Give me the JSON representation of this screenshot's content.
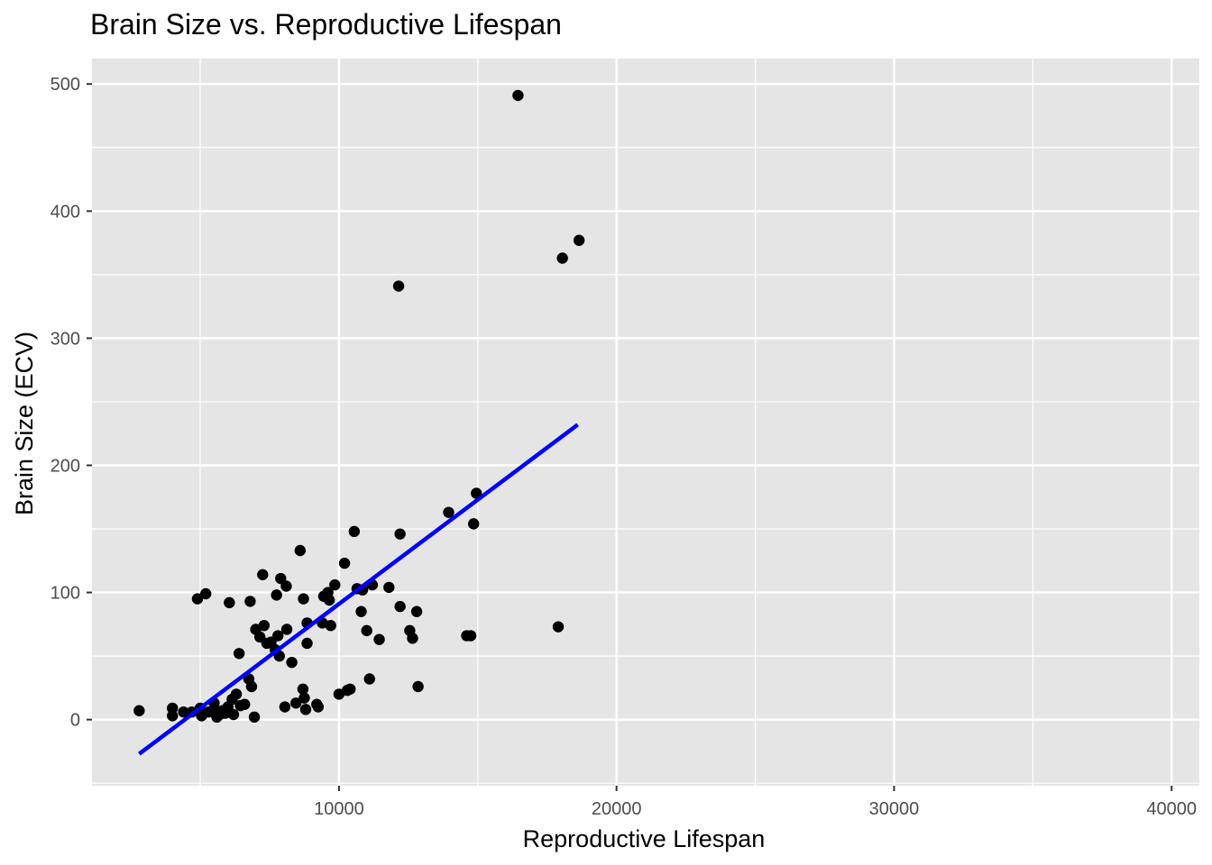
{
  "chart_data": {
    "type": "scatter",
    "title": "Brain Size vs. Reproductive Lifespan",
    "xlabel": "Reproductive Lifespan",
    "ylabel": "Brain Size (ECV)",
    "xlim": [
      1100,
      41000
    ],
    "ylim": [
      -52,
      520
    ],
    "x_ticks": [
      10000,
      20000,
      30000,
      40000
    ],
    "x_tick_labels": [
      "10000",
      "20000",
      "30000",
      "40000"
    ],
    "y_ticks": [
      0,
      100,
      200,
      300,
      400,
      500
    ],
    "y_tick_labels": [
      "0",
      "100",
      "200",
      "300",
      "400",
      "500"
    ],
    "grid": true,
    "background_color": "#e5e5e5",
    "grid_color": "#ffffff",
    "point_color": "#000000",
    "trend_line": {
      "method": "linear fit",
      "color": "#0000ff",
      "x": [
        2800,
        18600
      ],
      "y": [
        -27,
        232
      ]
    },
    "points": [
      {
        "x": 2800,
        "y": 7
      },
      {
        "x": 4000,
        "y": 3
      },
      {
        "x": 4000,
        "y": 9
      },
      {
        "x": 4400,
        "y": 6
      },
      {
        "x": 4700,
        "y": 6
      },
      {
        "x": 4900,
        "y": 95
      },
      {
        "x": 5000,
        "y": 9
      },
      {
        "x": 5050,
        "y": 3
      },
      {
        "x": 5200,
        "y": 99
      },
      {
        "x": 5300,
        "y": 6
      },
      {
        "x": 5500,
        "y": 13
      },
      {
        "x": 5500,
        "y": 8
      },
      {
        "x": 5600,
        "y": 2
      },
      {
        "x": 5700,
        "y": 4
      },
      {
        "x": 5800,
        "y": 7
      },
      {
        "x": 5900,
        "y": 5
      },
      {
        "x": 6000,
        "y": 10
      },
      {
        "x": 6050,
        "y": 92
      },
      {
        "x": 6150,
        "y": 16
      },
      {
        "x": 6200,
        "y": 4
      },
      {
        "x": 6300,
        "y": 20
      },
      {
        "x": 6400,
        "y": 52
      },
      {
        "x": 6450,
        "y": 11
      },
      {
        "x": 6600,
        "y": 12
      },
      {
        "x": 6750,
        "y": 32
      },
      {
        "x": 6800,
        "y": 93
      },
      {
        "x": 6850,
        "y": 26
      },
      {
        "x": 6950,
        "y": 2
      },
      {
        "x": 7000,
        "y": 71
      },
      {
        "x": 7150,
        "y": 65
      },
      {
        "x": 7250,
        "y": 114
      },
      {
        "x": 7300,
        "y": 74
      },
      {
        "x": 7400,
        "y": 60
      },
      {
        "x": 7550,
        "y": 61
      },
      {
        "x": 7700,
        "y": 55
      },
      {
        "x": 7750,
        "y": 98
      },
      {
        "x": 7800,
        "y": 66
      },
      {
        "x": 7850,
        "y": 50
      },
      {
        "x": 7900,
        "y": 111
      },
      {
        "x": 8050,
        "y": 10
      },
      {
        "x": 8100,
        "y": 105
      },
      {
        "x": 8120,
        "y": 71
      },
      {
        "x": 8300,
        "y": 45
      },
      {
        "x": 8450,
        "y": 13
      },
      {
        "x": 8600,
        "y": 133
      },
      {
        "x": 8700,
        "y": 24
      },
      {
        "x": 8720,
        "y": 95
      },
      {
        "x": 8750,
        "y": 17
      },
      {
        "x": 8800,
        "y": 8
      },
      {
        "x": 8850,
        "y": 76
      },
      {
        "x": 8850,
        "y": 60
      },
      {
        "x": 9200,
        "y": 12
      },
      {
        "x": 9250,
        "y": 10
      },
      {
        "x": 9400,
        "y": 76
      },
      {
        "x": 9450,
        "y": 97
      },
      {
        "x": 9600,
        "y": 100
      },
      {
        "x": 9650,
        "y": 94
      },
      {
        "x": 9700,
        "y": 74
      },
      {
        "x": 9850,
        "y": 106
      },
      {
        "x": 10000,
        "y": 20
      },
      {
        "x": 10200,
        "y": 123
      },
      {
        "x": 10300,
        "y": 23
      },
      {
        "x": 10400,
        "y": 24
      },
      {
        "x": 10550,
        "y": 148
      },
      {
        "x": 10650,
        "y": 103
      },
      {
        "x": 10800,
        "y": 85
      },
      {
        "x": 10850,
        "y": 102
      },
      {
        "x": 11000,
        "y": 70
      },
      {
        "x": 11100,
        "y": 32
      },
      {
        "x": 11200,
        "y": 106
      },
      {
        "x": 11450,
        "y": 63
      },
      {
        "x": 11800,
        "y": 104
      },
      {
        "x": 12150,
        "y": 341
      },
      {
        "x": 12200,
        "y": 146
      },
      {
        "x": 12200,
        "y": 89
      },
      {
        "x": 12550,
        "y": 70
      },
      {
        "x": 12650,
        "y": 64
      },
      {
        "x": 12800,
        "y": 85
      },
      {
        "x": 12850,
        "y": 26
      },
      {
        "x": 13950,
        "y": 163
      },
      {
        "x": 14600,
        "y": 66
      },
      {
        "x": 14750,
        "y": 66
      },
      {
        "x": 14850,
        "y": 154
      },
      {
        "x": 14950,
        "y": 178
      },
      {
        "x": 16450,
        "y": 491
      },
      {
        "x": 17900,
        "y": 73
      },
      {
        "x": 18050,
        "y": 363
      },
      {
        "x": 18650,
        "y": 377
      }
    ]
  }
}
